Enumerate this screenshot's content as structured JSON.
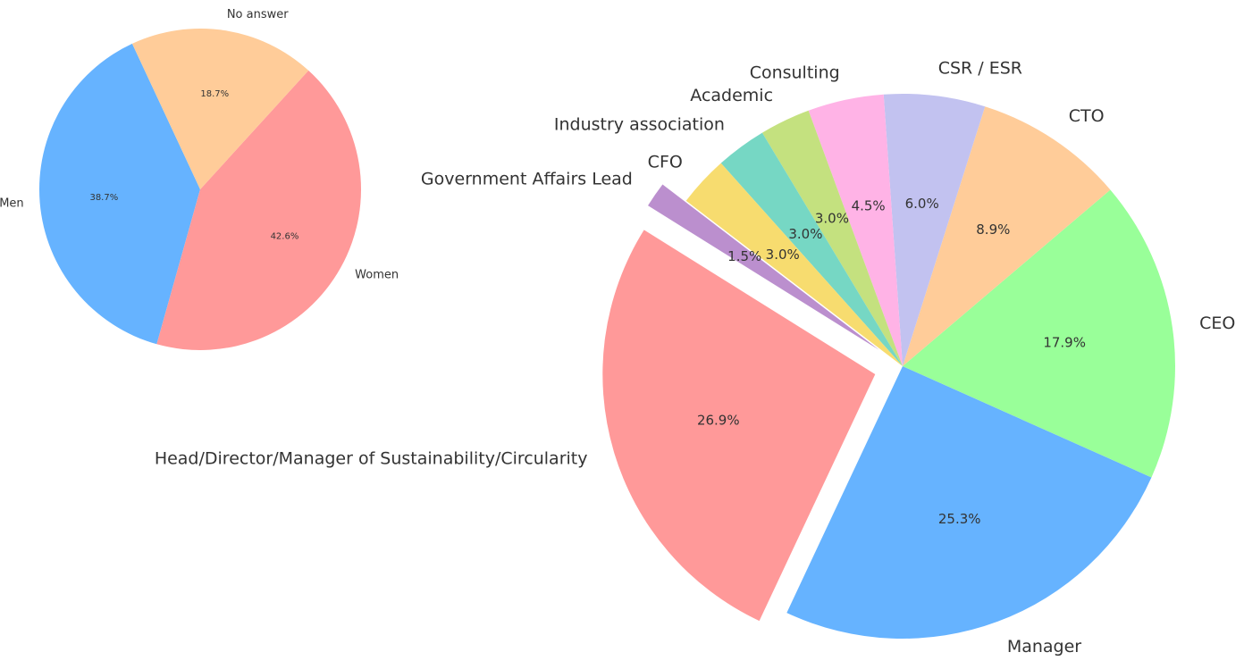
{
  "chart_data": [
    {
      "type": "pie",
      "title": "",
      "start_angle_deg": 115,
      "series": [
        {
          "label": "Men",
          "value": 38.7,
          "pct_label": "38.7%",
          "color": "#66b3ff"
        },
        {
          "label": "Women",
          "value": 42.6,
          "pct_label": "42.6%",
          "color": "#ff9999"
        },
        {
          "label": "No answer",
          "value": 18.7,
          "pct_label": "18.7%",
          "color": "#ffcc99"
        }
      ]
    },
    {
      "type": "pie",
      "title": "",
      "start_angle_deg": 148,
      "exploded": [
        "Head/Director/Manager of Sustainability/Circularity",
        "Government Affairs Lead"
      ],
      "series": [
        {
          "label": "Head/Director/Manager of Sustainability/Circularity",
          "value": 26.9,
          "pct_label": "26.9%",
          "color": "#ff9999"
        },
        {
          "label": "Manager",
          "value": 25.3,
          "pct_label": "25.3%",
          "color": "#66b3ff"
        },
        {
          "label": "CEO",
          "value": 17.9,
          "pct_label": "17.9%",
          "color": "#99ff99"
        },
        {
          "label": "CTO",
          "value": 8.9,
          "pct_label": "8.9%",
          "color": "#ffcc99"
        },
        {
          "label": "CSR / ESR",
          "value": 6.0,
          "pct_label": "6.0%",
          "color": "#c2c2f0"
        },
        {
          "label": "Consulting",
          "value": 4.5,
          "pct_label": "4.5%",
          "color": "#ffb3e6"
        },
        {
          "label": "Academic",
          "value": 3.0,
          "pct_label": "3.0%",
          "color": "#c4e17f"
        },
        {
          "label": "Industry association",
          "value": 3.0,
          "pct_label": "3.0%",
          "color": "#76d7c4"
        },
        {
          "label": "CFO",
          "value": 3.0,
          "pct_label": "3.0%",
          "color": "#f7dc6f"
        },
        {
          "label": "Government Affairs Lead",
          "value": 1.5,
          "pct_label": "1.5%",
          "color": "#bb8fce"
        }
      ]
    }
  ]
}
